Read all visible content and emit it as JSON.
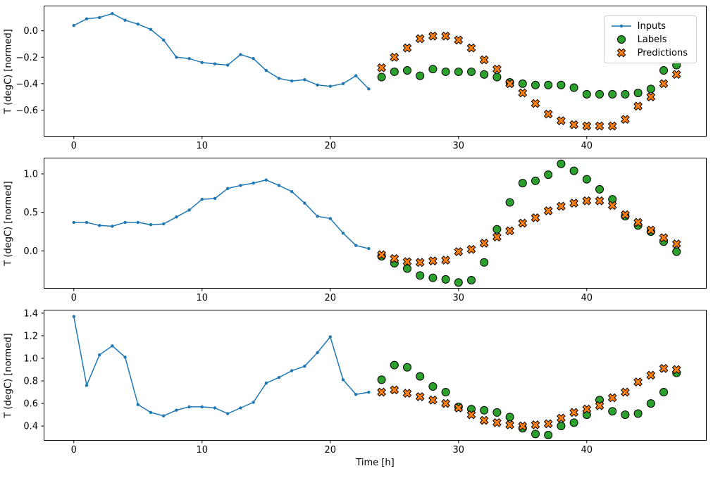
{
  "figure": {
    "xlabel": "Time [h]",
    "legend": [
      "Inputs",
      "Labels",
      "Predictions"
    ]
  },
  "colors": {
    "inputs": "#1f77b4",
    "labels": "#2ca02c",
    "predictions": "#ff7f0e",
    "edge": "#000000",
    "legend_border": "#cccccc",
    "background": "#ffffff"
  },
  "chart_data": [
    {
      "type": "line",
      "ylabel": "T (degC) [normed]",
      "xlim": [
        -2.35,
        49.35
      ],
      "ylim": [
        -0.8,
        0.19
      ],
      "xticks": [
        0,
        10,
        20,
        30,
        40
      ],
      "xticklabels": [
        "0",
        "10",
        "20",
        "30",
        "40"
      ],
      "yticks": [
        0.0,
        -0.2,
        -0.4,
        -0.6
      ],
      "yticklabels": [
        "0.0",
        "−0.2",
        "−0.4",
        "−0.6"
      ],
      "series": [
        {
          "name": "Inputs",
          "style": "line-dot",
          "x": [
            0,
            1,
            2,
            3,
            4,
            5,
            6,
            7,
            8,
            9,
            10,
            11,
            12,
            13,
            14,
            15,
            16,
            17,
            18,
            19,
            20,
            21,
            22,
            23
          ],
          "y": [
            0.04,
            0.09,
            0.1,
            0.13,
            0.08,
            0.05,
            0.01,
            -0.07,
            -0.2,
            -0.21,
            -0.24,
            -0.25,
            -0.26,
            -0.18,
            -0.21,
            -0.3,
            -0.36,
            -0.38,
            -0.37,
            -0.41,
            -0.42,
            -0.4,
            -0.34,
            -0.44
          ]
        },
        {
          "name": "Labels",
          "style": "circle",
          "x": [
            24,
            25,
            26,
            27,
            28,
            29,
            30,
            31,
            32,
            33,
            34,
            35,
            36,
            37,
            38,
            39,
            40,
            41,
            42,
            43,
            44,
            45,
            46,
            47
          ],
          "y": [
            -0.35,
            -0.31,
            -0.3,
            -0.34,
            -0.29,
            -0.31,
            -0.31,
            -0.31,
            -0.33,
            -0.35,
            -0.39,
            -0.4,
            -0.41,
            -0.41,
            -0.41,
            -0.43,
            -0.48,
            -0.48,
            -0.48,
            -0.48,
            -0.47,
            -0.44,
            -0.3,
            -0.26
          ]
        },
        {
          "name": "Predictions",
          "style": "x",
          "x": [
            24,
            25,
            26,
            27,
            28,
            29,
            30,
            31,
            32,
            33,
            34,
            35,
            36,
            37,
            38,
            39,
            40,
            41,
            42,
            43,
            44,
            45,
            46,
            47
          ],
          "y": [
            -0.28,
            -0.2,
            -0.13,
            -0.06,
            -0.04,
            -0.04,
            -0.07,
            -0.13,
            -0.22,
            -0.29,
            -0.4,
            -0.47,
            -0.55,
            -0.63,
            -0.68,
            -0.71,
            -0.72,
            -0.72,
            -0.72,
            -0.67,
            -0.57,
            -0.5,
            -0.4,
            -0.33
          ]
        }
      ]
    },
    {
      "type": "line",
      "ylabel": "T (degC) [normed]",
      "xlim": [
        -2.35,
        49.35
      ],
      "ylim": [
        -0.49,
        1.21
      ],
      "xticks": [
        0,
        10,
        20,
        30,
        40
      ],
      "xticklabels": [
        "0",
        "10",
        "20",
        "30",
        "40"
      ],
      "yticks": [
        0.0,
        0.5,
        1.0
      ],
      "yticklabels": [
        "0.0",
        "0.5",
        "1.0"
      ],
      "series": [
        {
          "name": "Inputs",
          "style": "line-dot",
          "x": [
            0,
            1,
            2,
            3,
            4,
            5,
            6,
            7,
            8,
            9,
            10,
            11,
            12,
            13,
            14,
            15,
            16,
            17,
            18,
            19,
            20,
            21,
            22,
            23
          ],
          "y": [
            0.37,
            0.37,
            0.33,
            0.32,
            0.37,
            0.37,
            0.34,
            0.35,
            0.44,
            0.53,
            0.67,
            0.68,
            0.81,
            0.85,
            0.88,
            0.92,
            0.85,
            0.77,
            0.62,
            0.45,
            0.42,
            0.23,
            0.07,
            0.03
          ]
        },
        {
          "name": "Labels",
          "style": "circle",
          "x": [
            24,
            25,
            26,
            27,
            28,
            29,
            30,
            31,
            32,
            33,
            34,
            35,
            36,
            37,
            38,
            39,
            40,
            41,
            42,
            43,
            44,
            45,
            46,
            47
          ],
          "y": [
            -0.07,
            -0.16,
            -0.23,
            -0.32,
            -0.35,
            -0.37,
            -0.41,
            -0.38,
            -0.15,
            0.28,
            0.63,
            0.88,
            0.91,
            0.99,
            1.13,
            1.04,
            0.93,
            0.8,
            0.67,
            0.45,
            0.33,
            0.25,
            0.12,
            -0.01
          ]
        },
        {
          "name": "Predictions",
          "style": "x",
          "x": [
            24,
            25,
            26,
            27,
            28,
            29,
            30,
            31,
            32,
            33,
            34,
            35,
            36,
            37,
            38,
            39,
            40,
            41,
            42,
            43,
            44,
            45,
            46,
            47
          ],
          "y": [
            -0.05,
            -0.1,
            -0.14,
            -0.15,
            -0.13,
            -0.12,
            -0.01,
            0.02,
            0.1,
            0.18,
            0.26,
            0.36,
            0.43,
            0.52,
            0.58,
            0.62,
            0.65,
            0.65,
            0.59,
            0.47,
            0.37,
            0.27,
            0.17,
            0.09
          ]
        }
      ]
    },
    {
      "type": "line",
      "ylabel": "T (degC) [normed]",
      "xlim": [
        -2.35,
        49.35
      ],
      "ylim": [
        0.27,
        1.43
      ],
      "xticks": [
        0,
        10,
        20,
        30,
        40
      ],
      "xticklabels": [
        "0",
        "10",
        "20",
        "30",
        "40"
      ],
      "yticks": [
        0.4,
        0.6,
        0.8,
        1.0,
        1.2,
        1.4
      ],
      "yticklabels": [
        "0.4",
        "0.6",
        "0.8",
        "1.0",
        "1.2",
        "1.4"
      ],
      "series": [
        {
          "name": "Inputs",
          "style": "line-dot",
          "x": [
            0,
            1,
            2,
            3,
            4,
            5,
            6,
            7,
            8,
            9,
            10,
            11,
            12,
            13,
            14,
            15,
            16,
            17,
            18,
            19,
            20,
            21,
            22,
            23
          ],
          "y": [
            1.37,
            0.76,
            1.03,
            1.11,
            1.01,
            0.59,
            0.52,
            0.49,
            0.54,
            0.57,
            0.57,
            0.56,
            0.51,
            0.56,
            0.61,
            0.78,
            0.83,
            0.89,
            0.93,
            1.05,
            1.19,
            0.81,
            0.68,
            0.7
          ]
        },
        {
          "name": "Labels",
          "style": "circle",
          "x": [
            24,
            25,
            26,
            27,
            28,
            29,
            30,
            31,
            32,
            33,
            34,
            35,
            36,
            37,
            38,
            39,
            40,
            41,
            42,
            43,
            44,
            45,
            46,
            47
          ],
          "y": [
            0.81,
            0.94,
            0.92,
            0.84,
            0.75,
            0.7,
            0.57,
            0.55,
            0.54,
            0.52,
            0.48,
            0.38,
            0.33,
            0.32,
            0.4,
            0.43,
            0.5,
            0.63,
            0.53,
            0.5,
            0.51,
            0.6,
            0.7,
            0.87
          ]
        },
        {
          "name": "Predictions",
          "style": "x",
          "x": [
            24,
            25,
            26,
            27,
            28,
            29,
            30,
            31,
            32,
            33,
            34,
            35,
            36,
            37,
            38,
            39,
            40,
            41,
            42,
            43,
            44,
            45,
            46,
            47
          ],
          "y": [
            0.7,
            0.72,
            0.69,
            0.66,
            0.63,
            0.6,
            0.56,
            0.5,
            0.45,
            0.43,
            0.41,
            0.4,
            0.41,
            0.42,
            0.47,
            0.52,
            0.55,
            0.58,
            0.65,
            0.7,
            0.79,
            0.85,
            0.91,
            0.9
          ]
        }
      ]
    }
  ]
}
